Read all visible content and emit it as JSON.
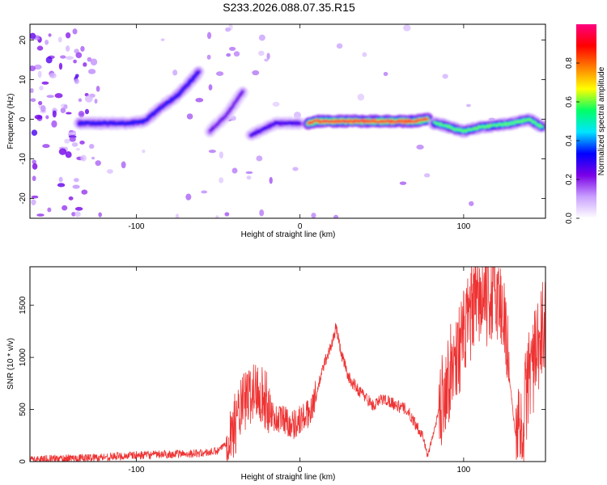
{
  "figure_title": "S233.2026.088.07.35.R15",
  "chart_data": [
    {
      "type": "heatmap",
      "title": "",
      "xlabel": "Height of straight line (km)",
      "ylabel": "Frequency (Hz)",
      "xlim": [
        -165,
        150
      ],
      "ylim": [
        -25,
        24
      ],
      "xticks": [
        -100,
        0,
        100
      ],
      "yticks": [
        -20,
        -10,
        0,
        10,
        20
      ],
      "colorbar": {
        "label": "Normalized spectral amplitude",
        "range": [
          0,
          1
        ],
        "ticks": [
          0.0,
          0.2,
          0.4,
          0.6,
          0.8
        ],
        "colors": [
          "#ffffff",
          "#c9a0ff",
          "#7a00e6",
          "#0000ff",
          "#00e5ff",
          "#00ff66",
          "#ffff00",
          "#ff7f00",
          "#ff0000",
          "#ff0080"
        ]
      },
      "ridges": [
        {
          "x": [
            -135,
            -120,
            -105,
            -95,
            -85,
            -75,
            -68,
            -62
          ],
          "y": [
            -1,
            -1,
            -1,
            -0.5,
            3,
            6,
            9,
            12
          ],
          "amp": 0.35
        },
        {
          "x": [
            -55,
            -50,
            -45,
            -40,
            -35
          ],
          "y": [
            -3,
            -1,
            1,
            4,
            7
          ],
          "amp": 0.25
        },
        {
          "x": [
            -30,
            -25,
            -20,
            -15,
            -10,
            -5,
            0
          ],
          "y": [
            -4,
            -3,
            -2,
            -1,
            -1,
            -1,
            -1
          ],
          "amp": 0.3
        },
        {
          "x": [
            5,
            10,
            20,
            30,
            40,
            50,
            60,
            70,
            78
          ],
          "y": [
            -1,
            -0.5,
            -0.5,
            -0.5,
            -0.5,
            -0.5,
            -0.5,
            -0.5,
            0
          ],
          "amp": 0.95
        },
        {
          "x": [
            82,
            88,
            95,
            100,
            110,
            120,
            130,
            140,
            148
          ],
          "y": [
            -1,
            -1.5,
            -2.5,
            -3,
            -2,
            -1.5,
            -1,
            0,
            -2
          ],
          "amp": 0.6
        }
      ]
    },
    {
      "type": "line",
      "title": "",
      "xlabel": "Height of straight line (km)",
      "ylabel": "SNR (10 * v/v)",
      "xlim": [
        -165,
        150
      ],
      "ylim": [
        0,
        1870
      ],
      "xticks": [
        -100,
        0,
        100
      ],
      "yticks": [
        0,
        500,
        1000,
        1500
      ],
      "color": "#ee3333",
      "envelope": [
        {
          "x": -165,
          "y": 20
        },
        {
          "x": -130,
          "y": 35
        },
        {
          "x": -100,
          "y": 60
        },
        {
          "x": -80,
          "y": 70
        },
        {
          "x": -60,
          "y": 80
        },
        {
          "x": -50,
          "y": 100
        },
        {
          "x": -45,
          "y": 180
        },
        {
          "x": -40,
          "y": 350
        },
        {
          "x": -35,
          "y": 550
        },
        {
          "x": -30,
          "y": 650
        },
        {
          "x": -25,
          "y": 700
        },
        {
          "x": -20,
          "y": 550
        },
        {
          "x": -15,
          "y": 400
        },
        {
          "x": -10,
          "y": 420
        },
        {
          "x": -5,
          "y": 350
        },
        {
          "x": 0,
          "y": 400
        },
        {
          "x": 5,
          "y": 450
        },
        {
          "x": 10,
          "y": 650
        },
        {
          "x": 15,
          "y": 950
        },
        {
          "x": 20,
          "y": 1150
        },
        {
          "x": 22,
          "y": 1300
        },
        {
          "x": 25,
          "y": 1050
        },
        {
          "x": 30,
          "y": 800
        },
        {
          "x": 35,
          "y": 700
        },
        {
          "x": 40,
          "y": 620
        },
        {
          "x": 45,
          "y": 530
        },
        {
          "x": 50,
          "y": 600
        },
        {
          "x": 55,
          "y": 580
        },
        {
          "x": 60,
          "y": 530
        },
        {
          "x": 65,
          "y": 500
        },
        {
          "x": 70,
          "y": 380
        },
        {
          "x": 75,
          "y": 250
        },
        {
          "x": 78,
          "y": 50
        },
        {
          "x": 82,
          "y": 300
        },
        {
          "x": 88,
          "y": 700
        },
        {
          "x": 95,
          "y": 1000
        },
        {
          "x": 100,
          "y": 1200
        },
        {
          "x": 105,
          "y": 1450
        },
        {
          "x": 110,
          "y": 1550
        },
        {
          "x": 115,
          "y": 1550
        },
        {
          "x": 120,
          "y": 1600
        },
        {
          "x": 125,
          "y": 1400
        },
        {
          "x": 128,
          "y": 800
        },
        {
          "x": 132,
          "y": 200
        },
        {
          "x": 136,
          "y": 300
        },
        {
          "x": 140,
          "y": 900
        },
        {
          "x": 145,
          "y": 1000
        },
        {
          "x": 150,
          "y": 1400
        }
      ],
      "noise": [
        {
          "x0": -165,
          "x1": -50,
          "amp": 40
        },
        {
          "x0": -45,
          "x1": -18,
          "amp": 300
        },
        {
          "x0": -18,
          "x1": 10,
          "amp": 150
        },
        {
          "x0": 10,
          "x1": 75,
          "amp": 60
        },
        {
          "x0": 85,
          "x1": 128,
          "amp": 450
        },
        {
          "x0": 132,
          "x1": 150,
          "amp": 500
        }
      ]
    }
  ]
}
